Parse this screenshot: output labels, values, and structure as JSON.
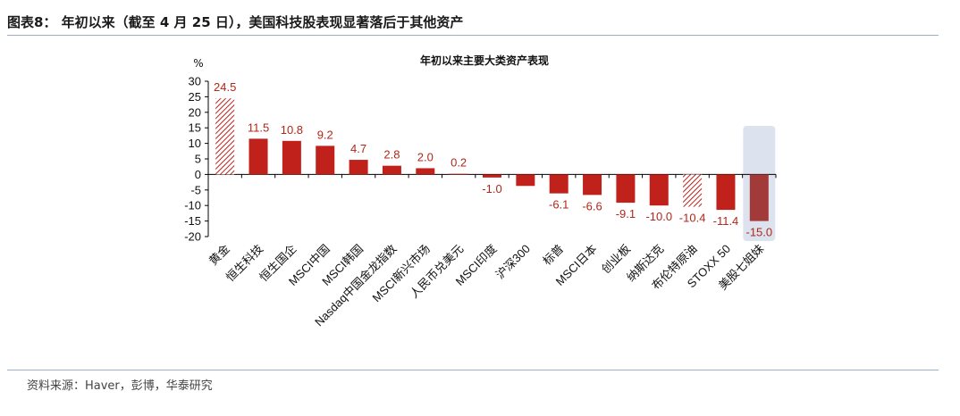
{
  "figure": {
    "title": "图表8：  年初以来（截至 4 月 25 日），美国科技股表现显著落后于其他资产",
    "source": "资料来源：Haver，彭博，华泰研究"
  },
  "colors": {
    "bar": "#c0221b",
    "highlight_bar": "#a33a3a",
    "highlight_bg": "#dde3ee",
    "hatched": "#c0221b",
    "label": "#b0271b"
  },
  "chart_data": {
    "type": "bar",
    "title": "年初以来主要大类资产表现",
    "unit": "%",
    "ylim": [
      -20,
      30
    ],
    "yticks": [
      30,
      25,
      20,
      15,
      10,
      5,
      0,
      -5,
      -10,
      -15,
      -20
    ],
    "grid": false,
    "categories": [
      "黄金",
      "恒生科技",
      "恒生国企",
      "MSCI中国",
      "MSCI韩国",
      "Nasdaq中国金龙指数",
      "MSCI新兴市场",
      "人民币兑美元",
      "MSCI印度",
      "沪深300",
      "标普",
      "MSCI日本",
      "创业板",
      "纳斯达克",
      "布伦特原油",
      "STOXX 50",
      "美股七姐妹"
    ],
    "values": [
      24.5,
      11.5,
      10.8,
      9.2,
      4.7,
      2.8,
      2.0,
      0.2,
      -1.0,
      -3.7,
      -6.1,
      -6.6,
      -9.1,
      -10.0,
      -10.4,
      -11.4,
      -15.0
    ],
    "data_labels": [
      "24.5",
      "11.5",
      "10.8",
      "9.2",
      "4.7",
      "2.8",
      "2.0",
      "0.2",
      "-1.0",
      "",
      "-6.1",
      "-6.6",
      "-9.1",
      "-10.0",
      "-10.4",
      "-11.4",
      "-15.0"
    ],
    "hatched": [
      true,
      false,
      false,
      false,
      false,
      false,
      false,
      false,
      false,
      false,
      false,
      false,
      false,
      false,
      true,
      false,
      false
    ],
    "highlighted": [
      false,
      false,
      false,
      false,
      false,
      false,
      false,
      false,
      false,
      false,
      false,
      false,
      false,
      false,
      false,
      false,
      true
    ]
  }
}
